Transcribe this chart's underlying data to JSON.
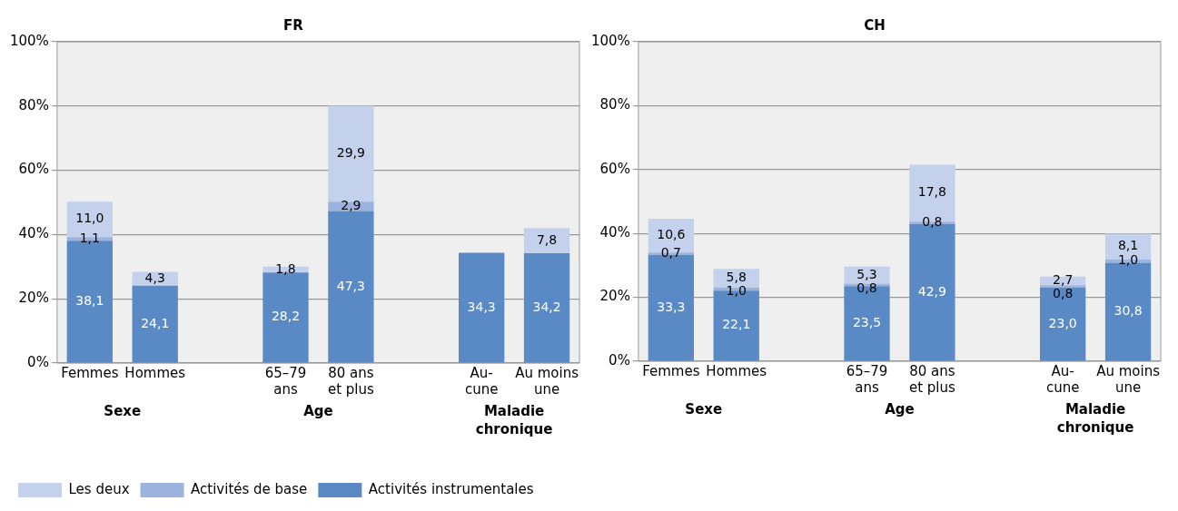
{
  "chart_data": [
    {
      "type": "bar",
      "title": "FR",
      "stacked": true,
      "categories": [
        "Femmes",
        "Hommes",
        null,
        "65–79 ans",
        "80 ans et plus",
        null,
        "Au-cune",
        "Au moins une"
      ],
      "series": [
        {
          "name": "Activités instrumentales",
          "color": "#5a8ac6",
          "values": [
            38.1,
            24.1,
            null,
            28.2,
            47.3,
            null,
            34.3,
            34.2
          ],
          "value_labels": [
            "38,1",
            "24,1",
            null,
            "28,2",
            "47,3",
            null,
            "34,3",
            "34,2"
          ]
        },
        {
          "name": "Activités de base",
          "color": "#9bb3dd",
          "values": [
            1.1,
            null,
            null,
            null,
            2.9,
            null,
            null,
            null
          ],
          "value_labels": [
            "1,1",
            null,
            null,
            null,
            "2,9",
            null,
            null,
            null
          ]
        },
        {
          "name": "Les deux",
          "color": "#c3d1ec",
          "values": [
            11.0,
            4.3,
            null,
            1.8,
            29.9,
            null,
            null,
            7.8
          ],
          "value_labels": [
            "11,0",
            "4,3",
            null,
            "1,8",
            "29,9",
            null,
            null,
            "7,8"
          ]
        }
      ],
      "ylim": [
        0,
        100
      ],
      "yticks": [
        {
          "value": 0,
          "label": "0%"
        },
        {
          "value": 20,
          "label": "20%"
        },
        {
          "value": 40,
          "label": "40%"
        },
        {
          "value": 60,
          "label": "60%"
        },
        {
          "value": 80,
          "label": "80%"
        },
        {
          "value": 100,
          "label": "100%"
        }
      ],
      "grid": "y",
      "legend": "bottom",
      "annotations": [
        "Sexe",
        "Age",
        "Maladie chronique"
      ]
    },
    {
      "type": "bar",
      "title": "CH",
      "stacked": true,
      "categories": [
        "Femmes",
        "Hommes",
        null,
        "65–79 ans",
        "80 ans et plus",
        null,
        "Au-cune",
        "Au moins une"
      ],
      "series": [
        {
          "color": "#5a8ac6",
          "values": [
            33.3,
            22.1,
            null,
            23.5,
            42.9,
            null,
            23.0,
            30.8
          ],
          "value_labels": [
            "33,3",
            "22,1",
            null,
            "23,5",
            "42,9",
            null,
            "23,0",
            "30,8"
          ]
        },
        {
          "color": "#9bb3dd",
          "values": [
            0.7,
            1.0,
            null,
            0.8,
            0.8,
            null,
            0.8,
            1.0
          ],
          "value_labels": [
            "0,7",
            "1,0",
            null,
            "0,8",
            "0,8",
            null,
            "0,8",
            "1,0"
          ]
        },
        {
          "color": "#c3d1ec",
          "values": [
            10.6,
            5.8,
            null,
            5.3,
            17.8,
            null,
            2.7,
            8.1
          ],
          "value_labels": [
            "10,6",
            "5,8",
            null,
            "5,3",
            "17,8",
            null,
            "2,7",
            "8,1"
          ]
        }
      ],
      "ylim": [
        0,
        100
      ],
      "yticks": [
        {
          "value": 0,
          "label": "0%"
        },
        {
          "value": 20,
          "label": "20%"
        },
        {
          "value": 40,
          "label": "40%"
        },
        {
          "value": 60,
          "label": "60%"
        },
        {
          "value": 80,
          "label": "80%"
        },
        {
          "value": 100,
          "label": "100%"
        }
      ],
      "grid": "y",
      "annotations": [
        "Sexe",
        "Age",
        "Maladie chronique"
      ]
    }
  ]
}
